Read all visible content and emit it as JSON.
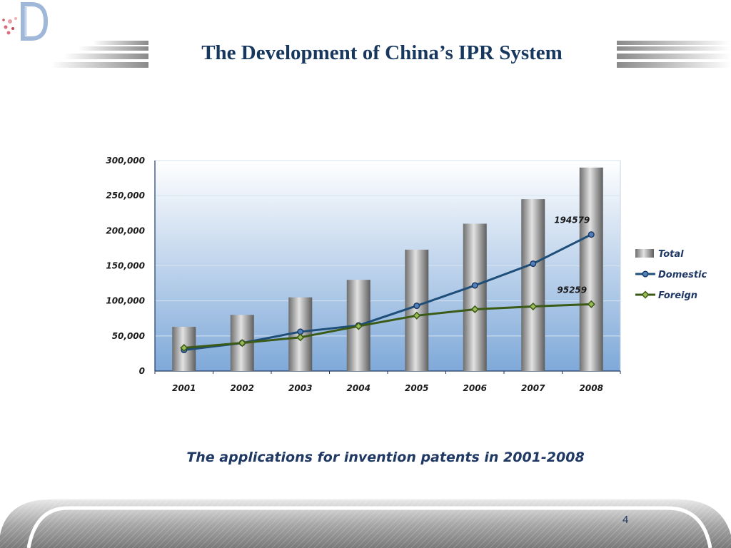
{
  "slide": {
    "title": "The Development of China’s IPR System",
    "caption": "The applications for invention patents in 2001-2008",
    "page_number": "4"
  },
  "chart_data": {
    "type": "bar",
    "title": "",
    "xlabel": "",
    "ylabel": "",
    "categories": [
      "2001",
      "2002",
      "2003",
      "2004",
      "2005",
      "2006",
      "2007",
      "2008"
    ],
    "ylim": [
      0,
      300000
    ],
    "yticks": [
      0,
      50000,
      100000,
      150000,
      200000,
      250000,
      300000
    ],
    "ytick_labels": [
      "0",
      "50,000",
      "100,000",
      "150,000",
      "200,000",
      "250,000",
      "300,000"
    ],
    "grid": true,
    "legend_position": "right",
    "series": [
      {
        "name": "Total",
        "kind": "bar",
        "values": [
          63000,
          80000,
          105000,
          130000,
          173000,
          210000,
          245000,
          290000
        ],
        "color": "#9b9b9b"
      },
      {
        "name": "Domestic",
        "kind": "line",
        "values": [
          30000,
          40000,
          56000,
          65000,
          93000,
          122000,
          153000,
          194579
        ],
        "color": "#1f4e79"
      },
      {
        "name": "Foreign",
        "kind": "line",
        "values": [
          33000,
          40000,
          48000,
          64000,
          79000,
          88000,
          92000,
          95259
        ],
        "color": "#3a5a16"
      }
    ],
    "annotations": [
      {
        "series": "Domestic",
        "category": "2008",
        "text": "194579"
      },
      {
        "series": "Foreign",
        "category": "2008",
        "text": "95259"
      }
    ]
  }
}
